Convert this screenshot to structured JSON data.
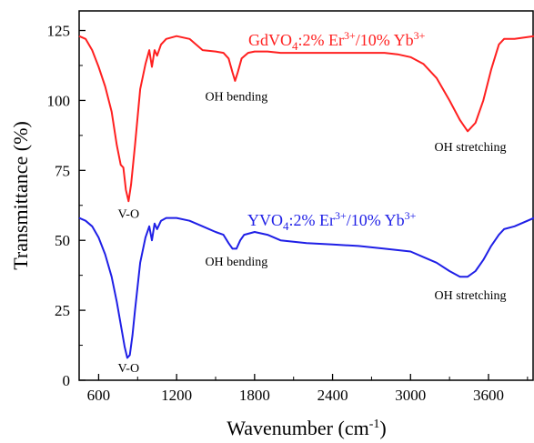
{
  "chart_data": {
    "type": "line",
    "xlabel": "Wavenumber (cm-1)",
    "xlabel_main": "Wavenumber (cm",
    "xlabel_sup": "-1",
    "xlabel_close": ")",
    "ylabel": "Transmittance (%)",
    "xlim": [
      450,
      3950
    ],
    "ylim": [
      0,
      132
    ],
    "xticks": [
      600,
      1200,
      1800,
      2400,
      3000,
      3600
    ],
    "yticks": [
      0,
      25,
      50,
      75,
      100,
      125
    ],
    "grid": false,
    "series": [
      {
        "name": "GdVO4:2% Er3+/10% Yb3+",
        "label_parts": {
          "a": "GdVO",
          "b": "4",
          "c": ":2% Er",
          "d": "3+",
          "e": "/10% Yb",
          "f": "3+"
        },
        "color": "#ff2020",
        "x": [
          450,
          500,
          550,
          600,
          650,
          700,
          740,
          770,
          790,
          810,
          830,
          850,
          880,
          920,
          960,
          990,
          1010,
          1030,
          1050,
          1080,
          1120,
          1200,
          1300,
          1400,
          1500,
          1560,
          1600,
          1630,
          1650,
          1670,
          1700,
          1750,
          1800,
          1900,
          2000,
          2200,
          2400,
          2600,
          2800,
          2900,
          3000,
          3100,
          3200,
          3300,
          3380,
          3440,
          3500,
          3560,
          3620,
          3680,
          3720,
          3800,
          3950
        ],
        "y": [
          123,
          122,
          118,
          112,
          105,
          96,
          84,
          77,
          76,
          68,
          64,
          70,
          84,
          104,
          113,
          118,
          112,
          118,
          116,
          120,
          122,
          123,
          122,
          118,
          117.5,
          117,
          115,
          110,
          107,
          110,
          115,
          117,
          117.5,
          117.5,
          117,
          117,
          117,
          117,
          117,
          116.5,
          115.5,
          113,
          108,
          100,
          93,
          89,
          92,
          100,
          111,
          120,
          122,
          122,
          123
        ]
      },
      {
        "name": "YVO4:2% Er3+/10% Yb3+",
        "label_parts": {
          "a": "YVO",
          "b": "4",
          "c": ":2% Er",
          "d": "3+",
          "e": "/10% Yb",
          "f": "3+"
        },
        "color": "#1f1fe6",
        "x": [
          450,
          500,
          550,
          600,
          650,
          700,
          740,
          770,
          800,
          820,
          840,
          860,
          880,
          920,
          960,
          990,
          1010,
          1030,
          1050,
          1080,
          1120,
          1200,
          1300,
          1400,
          1500,
          1560,
          1600,
          1630,
          1660,
          1690,
          1720,
          1800,
          1900,
          2000,
          2200,
          2400,
          2600,
          2800,
          3000,
          3100,
          3200,
          3300,
          3380,
          3440,
          3500,
          3560,
          3620,
          3680,
          3720,
          3800,
          3950
        ],
        "y": [
          58,
          57,
          55,
          51,
          45,
          37,
          28,
          20,
          12,
          8,
          9,
          16,
          25,
          42,
          51,
          55,
          50,
          56,
          54,
          57,
          58,
          58,
          57,
          55,
          53,
          52,
          49,
          47,
          47,
          50,
          52,
          53,
          52,
          50,
          49,
          48.5,
          48,
          47,
          46,
          44,
          42,
          39,
          37,
          37,
          39,
          43,
          48,
          52,
          54,
          55,
          58
        ]
      }
    ],
    "annotations": [
      {
        "text": "V-O",
        "x": 830,
        "y": 58
      },
      {
        "text": "OH bending",
        "x": 1660,
        "y": 100
      },
      {
        "text": "OH stretching",
        "x": 3460,
        "y": 82
      },
      {
        "text": "V-O",
        "x": 830,
        "y": 3
      },
      {
        "text": "OH bending",
        "x": 1660,
        "y": 41
      },
      {
        "text": "OH stretching",
        "x": 3460,
        "y": 29
      }
    ]
  }
}
